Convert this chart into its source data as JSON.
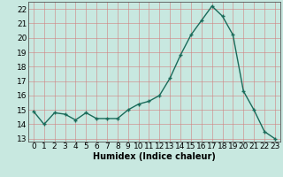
{
  "x": [
    0,
    1,
    2,
    3,
    4,
    5,
    6,
    7,
    8,
    9,
    10,
    11,
    12,
    13,
    14,
    15,
    16,
    17,
    18,
    19,
    20,
    21,
    22,
    23
  ],
  "y": [
    14.9,
    14.0,
    14.8,
    14.7,
    14.3,
    14.8,
    14.4,
    14.4,
    14.4,
    15.0,
    15.4,
    15.6,
    16.0,
    17.2,
    18.8,
    20.2,
    21.2,
    22.2,
    21.5,
    20.2,
    16.3,
    15.0,
    13.5,
    13.0
  ],
  "xlabel": "Humidex (Indice chaleur)",
  "xlim": [
    -0.5,
    23.5
  ],
  "ylim": [
    12.8,
    22.5
  ],
  "yticks": [
    13,
    14,
    15,
    16,
    17,
    18,
    19,
    20,
    21,
    22
  ],
  "xticks": [
    0,
    1,
    2,
    3,
    4,
    5,
    6,
    7,
    8,
    9,
    10,
    11,
    12,
    13,
    14,
    15,
    16,
    17,
    18,
    19,
    20,
    21,
    22,
    23
  ],
  "line_color": "#1a6b5a",
  "marker_color": "#1a6b5a",
  "bg_color": "#c8e8e0",
  "grid_color": "#d08080",
  "plot_bg": "#c8e8e0",
  "xlabel_fontsize": 7.0,
  "tick_fontsize": 6.5,
  "line_width": 1.0,
  "marker_size": 3.5,
  "marker_style": "+"
}
